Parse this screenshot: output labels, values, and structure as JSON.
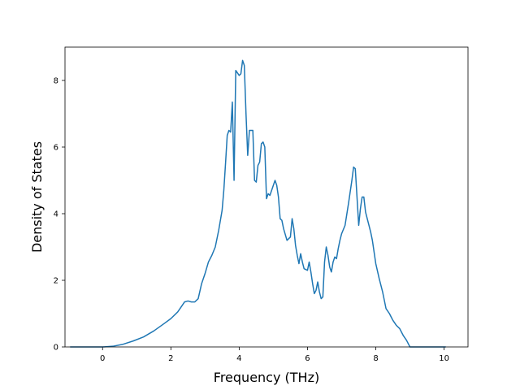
{
  "chart_data": {
    "type": "line",
    "title": "",
    "xlabel": "Frequency (THz)",
    "ylabel": "Density of States",
    "xlim": [
      -1.1,
      10.7
    ],
    "ylim": [
      0,
      9
    ],
    "xticks": [
      0,
      2,
      4,
      6,
      8,
      10
    ],
    "yticks": [
      0,
      2,
      4,
      6,
      8
    ],
    "grid": false,
    "line_color": "#1f77b4",
    "series": [
      {
        "x": [
          -0.95,
          -0.5,
          0.0,
          0.3,
          0.6,
          0.9,
          1.2,
          1.5,
          1.8,
          2.0,
          2.2,
          2.3,
          2.4,
          2.5,
          2.6,
          2.7,
          2.8,
          2.9,
          3.0,
          3.1,
          3.2,
          3.3,
          3.4,
          3.5,
          3.55,
          3.6,
          3.65,
          3.7,
          3.75,
          3.8,
          3.85,
          3.9,
          4.0,
          4.05,
          4.1,
          4.15,
          4.2,
          4.25,
          4.3,
          4.4,
          4.45,
          4.5,
          4.55,
          4.6,
          4.65,
          4.7,
          4.75,
          4.8,
          4.85,
          4.9,
          5.0,
          5.05,
          5.1,
          5.15,
          5.2,
          5.25,
          5.3,
          5.4,
          5.5,
          5.55,
          5.6,
          5.65,
          5.7,
          5.75,
          5.8,
          5.85,
          5.9,
          6.0,
          6.05,
          6.1,
          6.15,
          6.2,
          6.25,
          6.3,
          6.35,
          6.4,
          6.45,
          6.5,
          6.55,
          6.6,
          6.65,
          6.7,
          6.75,
          6.8,
          6.85,
          6.9,
          6.95,
          7.0,
          7.1,
          7.2,
          7.3,
          7.35,
          7.4,
          7.45,
          7.5,
          7.55,
          7.6,
          7.65,
          7.7,
          7.75,
          7.8,
          7.85,
          7.9,
          8.0,
          8.1,
          8.2,
          8.3,
          8.4,
          8.45,
          8.5,
          8.6,
          8.7,
          8.8,
          8.9,
          9.0,
          9.1,
          9.2,
          9.5,
          10.05
        ],
        "y": [
          0.0,
          0.0,
          0.0,
          0.02,
          0.08,
          0.18,
          0.3,
          0.48,
          0.7,
          0.85,
          1.05,
          1.2,
          1.35,
          1.38,
          1.35,
          1.35,
          1.45,
          1.9,
          2.2,
          2.55,
          2.75,
          3.0,
          3.5,
          4.1,
          4.7,
          5.5,
          6.35,
          6.5,
          6.45,
          7.35,
          5.0,
          8.3,
          8.15,
          8.2,
          8.6,
          8.45,
          7.0,
          5.75,
          6.5,
          6.5,
          5.0,
          4.95,
          5.45,
          5.55,
          6.1,
          6.15,
          6.0,
          4.45,
          4.6,
          4.55,
          4.85,
          5.0,
          4.85,
          4.5,
          3.85,
          3.8,
          3.55,
          3.2,
          3.3,
          3.85,
          3.55,
          3.05,
          2.75,
          2.5,
          2.8,
          2.55,
          2.35,
          2.3,
          2.55,
          2.25,
          1.9,
          1.6,
          1.7,
          1.95,
          1.65,
          1.45,
          1.5,
          2.55,
          3.0,
          2.75,
          2.4,
          2.25,
          2.55,
          2.7,
          2.65,
          2.95,
          3.2,
          3.4,
          3.65,
          4.3,
          5.0,
          5.4,
          5.35,
          4.5,
          3.65,
          4.15,
          4.5,
          4.5,
          4.05,
          3.85,
          3.65,
          3.45,
          3.2,
          2.5,
          2.05,
          1.65,
          1.15,
          1.0,
          0.9,
          0.8,
          0.65,
          0.55,
          0.35,
          0.2,
          0.0,
          0.0,
          0.0,
          0.0,
          0.0
        ]
      }
    ]
  }
}
